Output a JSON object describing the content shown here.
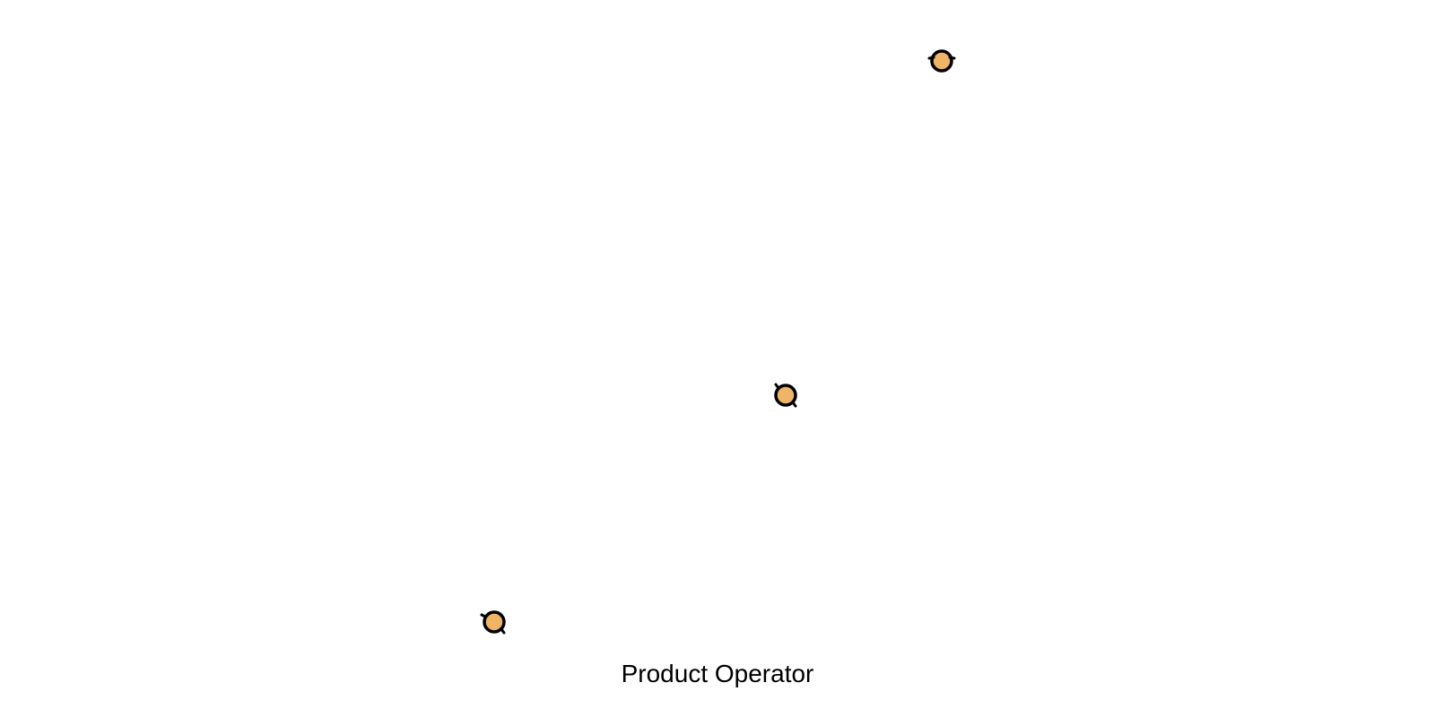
{
  "diagram": {
    "caption": "Product Operator",
    "nodes": [
      {
        "icon": "circle-node-icon"
      },
      {
        "icon": "circle-node-icon"
      },
      {
        "icon": "circle-node-icon"
      }
    ]
  },
  "colors": {
    "node_fill": "#F0B466",
    "node_stroke": "#000000",
    "background": "#FFFFFF",
    "text": "#000000"
  }
}
